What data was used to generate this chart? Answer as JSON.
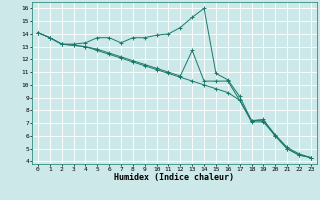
{
  "xlabel": "Humidex (Indice chaleur)",
  "bg_color": "#cce8e8",
  "line_color": "#1a7a6a",
  "grid_color": "#ffffff",
  "xlim": [
    -0.5,
    23.5
  ],
  "ylim": [
    3.8,
    16.5
  ],
  "yticks": [
    4,
    5,
    6,
    7,
    8,
    9,
    10,
    11,
    12,
    13,
    14,
    15,
    16
  ],
  "xticks": [
    0,
    1,
    2,
    3,
    4,
    5,
    6,
    7,
    8,
    9,
    10,
    11,
    12,
    13,
    14,
    15,
    16,
    17,
    18,
    19,
    20,
    21,
    22,
    23
  ],
  "line1_x": [
    0,
    1,
    2,
    3,
    4,
    5,
    6,
    7,
    8,
    9,
    10,
    11,
    12,
    13,
    14,
    15,
    16,
    17,
    18,
    19,
    20,
    21,
    22,
    23
  ],
  "line1_y": [
    14.1,
    13.7,
    13.2,
    13.2,
    13.3,
    13.7,
    13.7,
    13.3,
    13.7,
    13.7,
    13.9,
    14.0,
    14.5,
    15.3,
    16.0,
    10.9,
    10.4,
    9.1,
    7.2,
    7.3,
    6.0,
    5.0,
    4.5,
    4.3
  ],
  "line2_x": [
    0,
    1,
    2,
    3,
    4,
    5,
    6,
    7,
    8,
    9,
    10,
    11,
    12,
    13,
    14,
    15,
    16,
    17,
    18,
    19,
    20,
    21,
    22,
    23
  ],
  "line2_y": [
    14.1,
    13.7,
    13.2,
    13.1,
    13.0,
    12.8,
    12.5,
    12.2,
    11.9,
    11.6,
    11.3,
    11.0,
    10.7,
    12.7,
    10.3,
    10.3,
    10.3,
    8.8,
    7.2,
    7.2,
    6.1,
    5.1,
    4.6,
    4.3
  ],
  "line3_x": [
    0,
    1,
    2,
    3,
    4,
    5,
    6,
    7,
    8,
    9,
    10,
    11,
    12,
    13,
    14,
    15,
    16,
    17,
    18,
    19,
    20,
    21,
    22,
    23
  ],
  "line3_y": [
    14.1,
    13.7,
    13.2,
    13.1,
    13.0,
    12.7,
    12.4,
    12.1,
    11.8,
    11.5,
    11.2,
    10.9,
    10.6,
    10.3,
    10.0,
    9.7,
    9.4,
    8.8,
    7.1,
    7.1,
    6.0,
    5.0,
    4.5,
    4.3
  ]
}
